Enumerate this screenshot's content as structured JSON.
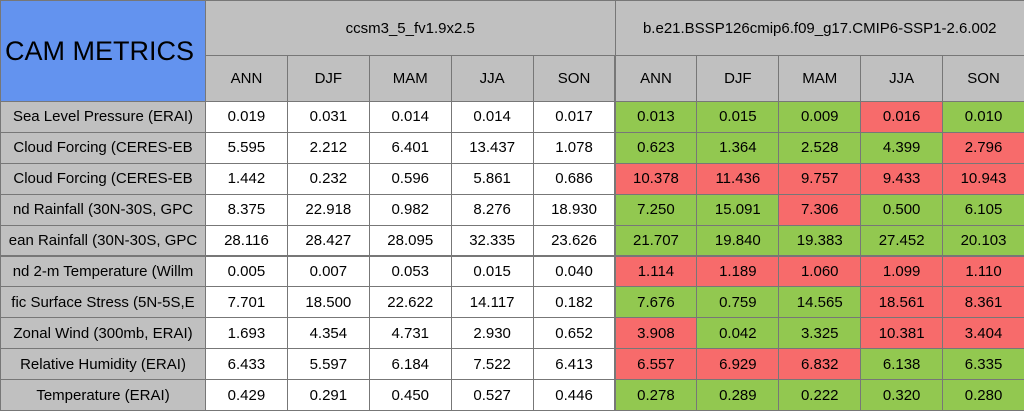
{
  "title": "CAM METRICS",
  "metrics": [
    "Sea Level Pressure (ERAI)",
    "Cloud Forcing (CERES-EB",
    "Cloud Forcing (CERES-EB",
    "nd Rainfall (30N-30S, GPC",
    "ean Rainfall (30N-30S, GPC",
    "nd 2-m Temperature (Willm",
    "fic Surface Stress (5N-5S,E",
    "Zonal Wind (300mb, ERAI)",
    "Relative Humidity (ERAI)",
    "Temperature (ERAI)"
  ],
  "cases": [
    {
      "name": "ccsm3_5_fv1.9x2.5",
      "seasons": [
        "ANN",
        "DJF",
        "MAM",
        "JJA",
        "SON"
      ],
      "values": [
        [
          "0.019",
          "0.031",
          "0.014",
          "0.014",
          "0.017"
        ],
        [
          "5.595",
          "2.212",
          "6.401",
          "13.437",
          "1.078"
        ],
        [
          "1.442",
          "0.232",
          "0.596",
          "5.861",
          "0.686"
        ],
        [
          "8.375",
          "22.918",
          "0.982",
          "8.276",
          "18.930"
        ],
        [
          "28.116",
          "28.427",
          "28.095",
          "32.335",
          "23.626"
        ],
        [
          "0.005",
          "0.007",
          "0.053",
          "0.015",
          "0.040"
        ],
        [
          "7.701",
          "18.500",
          "22.622",
          "14.117",
          "0.182"
        ],
        [
          "1.693",
          "4.354",
          "4.731",
          "2.930",
          "0.652"
        ],
        [
          "6.433",
          "5.597",
          "6.184",
          "7.522",
          "6.413"
        ],
        [
          "0.429",
          "0.291",
          "0.450",
          "0.527",
          "0.446"
        ]
      ]
    },
    {
      "name": "b.e21.BSSP126cmip6.f09_g17.CMIP6-SSP1-2.6.002",
      "seasons": [
        "ANN",
        "DJF",
        "MAM",
        "JJA",
        "SON"
      ],
      "values": [
        [
          "0.013",
          "0.015",
          "0.009",
          "0.016",
          "0.010"
        ],
        [
          "0.623",
          "1.364",
          "2.528",
          "4.399",
          "2.796"
        ],
        [
          "10.378",
          "11.436",
          "9.757",
          "9.433",
          "10.943"
        ],
        [
          "7.250",
          "15.091",
          "7.306",
          "0.500",
          "6.105"
        ],
        [
          "21.707",
          "19.840",
          "19.383",
          "27.452",
          "20.103"
        ],
        [
          "1.114",
          "1.189",
          "1.060",
          "1.099",
          "1.110"
        ],
        [
          "7.676",
          "0.759",
          "14.565",
          "18.561",
          "8.361"
        ],
        [
          "3.908",
          "0.042",
          "3.325",
          "10.381",
          "3.404"
        ],
        [
          "6.557",
          "6.929",
          "6.832",
          "6.138",
          "6.335"
        ],
        [
          "0.278",
          "0.289",
          "0.222",
          "0.320",
          "0.280"
        ]
      ],
      "colors": [
        [
          "#92c850",
          "#92c850",
          "#92c850",
          "#f76b6b",
          "#92c850"
        ],
        [
          "#92c850",
          "#92c850",
          "#92c850",
          "#92c850",
          "#f76b6b"
        ],
        [
          "#f76b6b",
          "#f76b6b",
          "#f76b6b",
          "#f76b6b",
          "#f76b6b"
        ],
        [
          "#92c850",
          "#92c850",
          "#f76b6b",
          "#92c850",
          "#92c850"
        ],
        [
          "#92c850",
          "#92c850",
          "#92c850",
          "#92c850",
          "#92c850"
        ],
        [
          "#f76b6b",
          "#f76b6b",
          "#f76b6b",
          "#f76b6b",
          "#f76b6b"
        ],
        [
          "#92c850",
          "#92c850",
          "#92c850",
          "#f76b6b",
          "#f76b6b"
        ],
        [
          "#f76b6b",
          "#92c850",
          "#92c850",
          "#f76b6b",
          "#f76b6b"
        ],
        [
          "#f76b6b",
          "#f76b6b",
          "#f76b6b",
          "#92c850",
          "#92c850"
        ],
        [
          "#92c850",
          "#92c850",
          "#92c850",
          "#92c850",
          "#92c850"
        ]
      ]
    }
  ]
}
